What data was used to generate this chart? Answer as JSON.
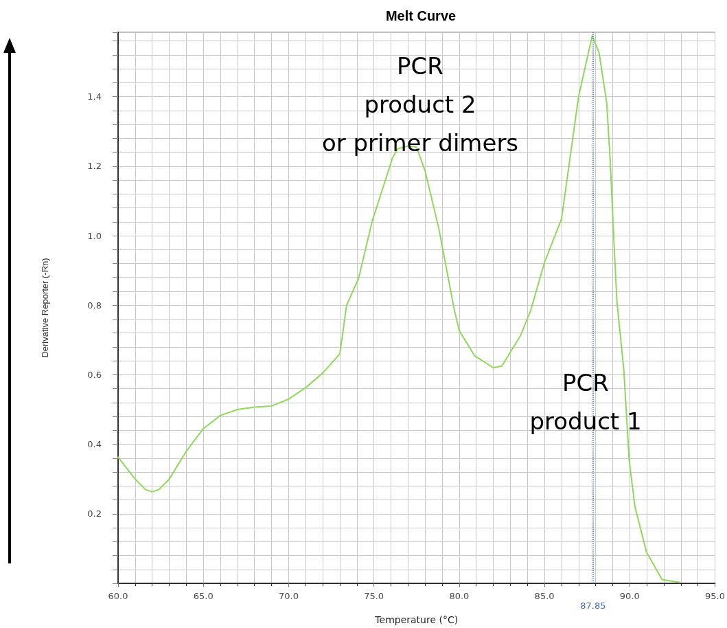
{
  "chart_data": {
    "type": "line",
    "title": "Melt Curve",
    "xlabel": "Temperature (°C)",
    "ylabel": "Derivative Reporter (-Rn)",
    "xlim": [
      60,
      95
    ],
    "xticks": [
      {
        "value": 60,
        "label": "60.0"
      },
      {
        "value": 65,
        "label": "65.0"
      },
      {
        "value": 70,
        "label": "70.0"
      },
      {
        "value": 75,
        "label": "75.0"
      },
      {
        "value": 80,
        "label": "80.0"
      },
      {
        "value": 85,
        "label": "85.0"
      },
      {
        "value": 90,
        "label": "90.0"
      },
      {
        "value": 95,
        "label": "95.0"
      }
    ],
    "ylim": [
      0,
      1.585
    ],
    "yticks": [
      0.2,
      0.4,
      0.6,
      0.8,
      {
        "value": 1,
        "label": "1.0"
      },
      1.2,
      1.4
    ],
    "grid": true,
    "marker": "none",
    "line_style": "solid",
    "x": [
      60,
      61,
      61.6,
      62,
      62.4,
      63,
      64,
      65,
      66,
      67,
      68,
      69,
      70,
      71,
      72,
      73,
      73.4,
      74.1,
      74.9,
      76.1,
      76.4,
      77,
      77.5,
      78,
      78.8,
      79.7,
      80,
      80.9,
      82,
      82.5,
      83.6,
      84.2,
      85,
      86,
      87,
      87.8,
      88.2,
      88.65,
      88.85,
      89.1,
      89.25,
      89.65,
      89.97,
      90.3,
      90.98,
      91.9,
      92.9
    ],
    "series": [
      {
        "color": "#8fd85a",
        "values": [
          0.363,
          0.3,
          0.27,
          0.263,
          0.27,
          0.3,
          0.38,
          0.445,
          0.483,
          0.5,
          0.507,
          0.51,
          0.53,
          0.563,
          0.605,
          0.66,
          0.8,
          0.877,
          1.042,
          1.225,
          1.25,
          1.258,
          1.255,
          1.186,
          1.022,
          0.79,
          0.727,
          0.655,
          0.62,
          0.625,
          0.713,
          0.786,
          0.923,
          1.048,
          1.4,
          1.575,
          1.527,
          1.382,
          1.219,
          0.956,
          0.81,
          0.615,
          0.353,
          0.222,
          0.09,
          0.011,
          0.003
        ]
      }
    ],
    "ref_lines": [
      {
        "axis": "x",
        "value": 87.85,
        "label": "87.85",
        "color": "#3a6fc4",
        "line_style": "dotted"
      }
    ],
    "annotations": [
      "PCR\nproduct 2\nor primer dimers",
      "PCR\nproduct 1"
    ]
  }
}
